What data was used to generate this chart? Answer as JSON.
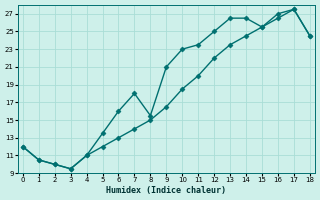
{
  "xlabel": "Humidex (Indice chaleur)",
  "line_color": "#007070",
  "background_color": "#cef0ea",
  "grid_color": "#aaddd6",
  "upper_x": [
    0,
    1,
    2,
    3,
    4,
    5,
    6,
    7,
    8,
    9,
    10,
    11,
    12,
    13,
    14,
    15,
    16,
    17,
    18
  ],
  "upper_y": [
    12.0,
    10.5,
    10.0,
    9.5,
    11.0,
    13.5,
    16.0,
    18.0,
    15.5,
    21.0,
    23.0,
    23.5,
    25.0,
    26.5,
    26.5,
    25.5,
    27.0,
    27.5,
    24.5
  ],
  "lower_x": [
    0,
    1,
    2,
    3,
    4,
    5,
    6,
    7,
    8,
    9,
    10,
    11,
    12,
    13,
    14,
    15,
    16,
    17,
    18
  ],
  "lower_y": [
    12.0,
    10.5,
    10.0,
    9.5,
    11.0,
    12.0,
    13.0,
    14.0,
    15.0,
    16.5,
    18.5,
    20.0,
    22.0,
    23.5,
    24.5,
    25.5,
    26.5,
    27.5,
    24.5
  ],
  "ylim": [
    9,
    28
  ],
  "xlim": [
    -0.3,
    18.3
  ],
  "yticks": [
    9,
    11,
    13,
    15,
    17,
    19,
    21,
    23,
    25,
    27
  ],
  "xticks": [
    0,
    1,
    2,
    3,
    4,
    5,
    6,
    7,
    8,
    9,
    10,
    11,
    12,
    13,
    14,
    15,
    16,
    17,
    18
  ],
  "marker": "D",
  "marker_size": 2.5,
  "line_width": 1.0
}
